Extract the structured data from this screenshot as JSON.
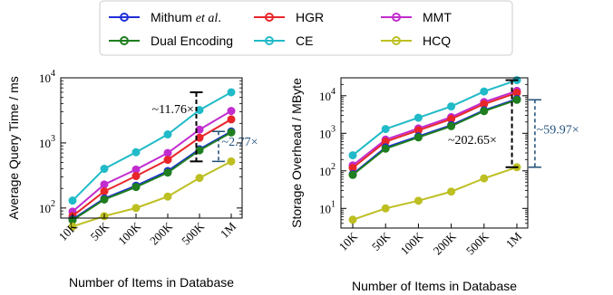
{
  "legend": {
    "entries": [
      {
        "text": "Mithum ",
        "italic": "et al",
        "suffix": ".",
        "color": "#1f2fd6"
      },
      {
        "text": "HGR",
        "color": "#e8262a"
      },
      {
        "text": "MMT",
        "color": "#c12ccf"
      },
      {
        "text": "Dual Encoding",
        "color": "#1f7e1f"
      },
      {
        "text": "CE",
        "color": "#21bac8"
      },
      {
        "text": "HCQ",
        "color": "#bdbf22"
      }
    ]
  },
  "chart_data": [
    {
      "type": "line",
      "ylabel": "Average Query Time / ms",
      "xlabel": "Number of Items in Database",
      "yscale": "log",
      "ylim": [
        70,
        10000
      ],
      "yticks": [
        {
          "v": 100,
          "label": "10",
          "exp": "2"
        },
        {
          "v": 1000,
          "label": "10",
          "exp": "3"
        },
        {
          "v": 10000,
          "label": "10",
          "exp": "4"
        }
      ],
      "categories": [
        "10K",
        "50K",
        "100K",
        "200K",
        "500K",
        "1M"
      ],
      "series": [
        {
          "name": "CE",
          "color": "#21bac8",
          "values": [
            130,
            400,
            720,
            1350,
            3200,
            6000
          ]
        },
        {
          "name": "MMT",
          "color": "#c12ccf",
          "values": [
            88,
            230,
            390,
            700,
            1600,
            3100
          ]
        },
        {
          "name": "HGR",
          "color": "#e8262a",
          "values": [
            75,
            180,
            310,
            550,
            1200,
            2300
          ]
        },
        {
          "name": "Mithum et al.",
          "color": "#1f2fd6",
          "values": [
            67,
            140,
            220,
            370,
            800,
            1500
          ]
        },
        {
          "name": "Dual Encoding",
          "color": "#1f7e1f",
          "values": [
            65,
            135,
            210,
            350,
            770,
            1450
          ]
        },
        {
          "name": "HCQ",
          "color": "#bdbf22",
          "values": [
            52,
            75,
            100,
            150,
            290,
            520
          ]
        }
      ],
      "annotations": [
        {
          "text": "~11.76×",
          "color": "#000000"
        },
        {
          "text": "~2.77×",
          "color": "#1f4e79"
        }
      ]
    },
    {
      "type": "line",
      "ylabel": "Storage Overhead / MByte",
      "xlabel": "Number of Items in Database",
      "yscale": "log",
      "ylim": [
        3,
        30000
      ],
      "yticks": [
        {
          "v": 10,
          "label": "10",
          "exp": "1"
        },
        {
          "v": 100,
          "label": "10",
          "exp": "2"
        },
        {
          "v": 1000,
          "label": "10",
          "exp": "3"
        },
        {
          "v": 10000,
          "label": "10",
          "exp": "4"
        }
      ],
      "categories": [
        "10K",
        "50K",
        "100K",
        "200K",
        "500K",
        "1M"
      ],
      "series": [
        {
          "name": "CE",
          "color": "#21bac8",
          "values": [
            260,
            1300,
            2600,
            5200,
            13000,
            26000
          ]
        },
        {
          "name": "MMT",
          "color": "#c12ccf",
          "values": [
            140,
            680,
            1350,
            2700,
            6800,
            13500
          ]
        },
        {
          "name": "HGR",
          "color": "#e8262a",
          "values": [
            120,
            600,
            1200,
            2400,
            6000,
            12000
          ]
        },
        {
          "name": "Mithum et al.",
          "color": "#1f2fd6",
          "values": [
            82,
            420,
            830,
            1650,
            4100,
            8200
          ]
        },
        {
          "name": "Dual Encoding",
          "color": "#1f7e1f",
          "values": [
            78,
            390,
            780,
            1550,
            3900,
            7800
          ]
        },
        {
          "name": "HCQ",
          "color": "#bdbf22",
          "values": [
            5,
            10,
            16,
            28,
            63,
            125
          ]
        }
      ],
      "annotations": [
        {
          "text": "~202.65×",
          "color": "#000000"
        },
        {
          "text": "~59.97×",
          "color": "#1f4e79"
        }
      ]
    }
  ]
}
